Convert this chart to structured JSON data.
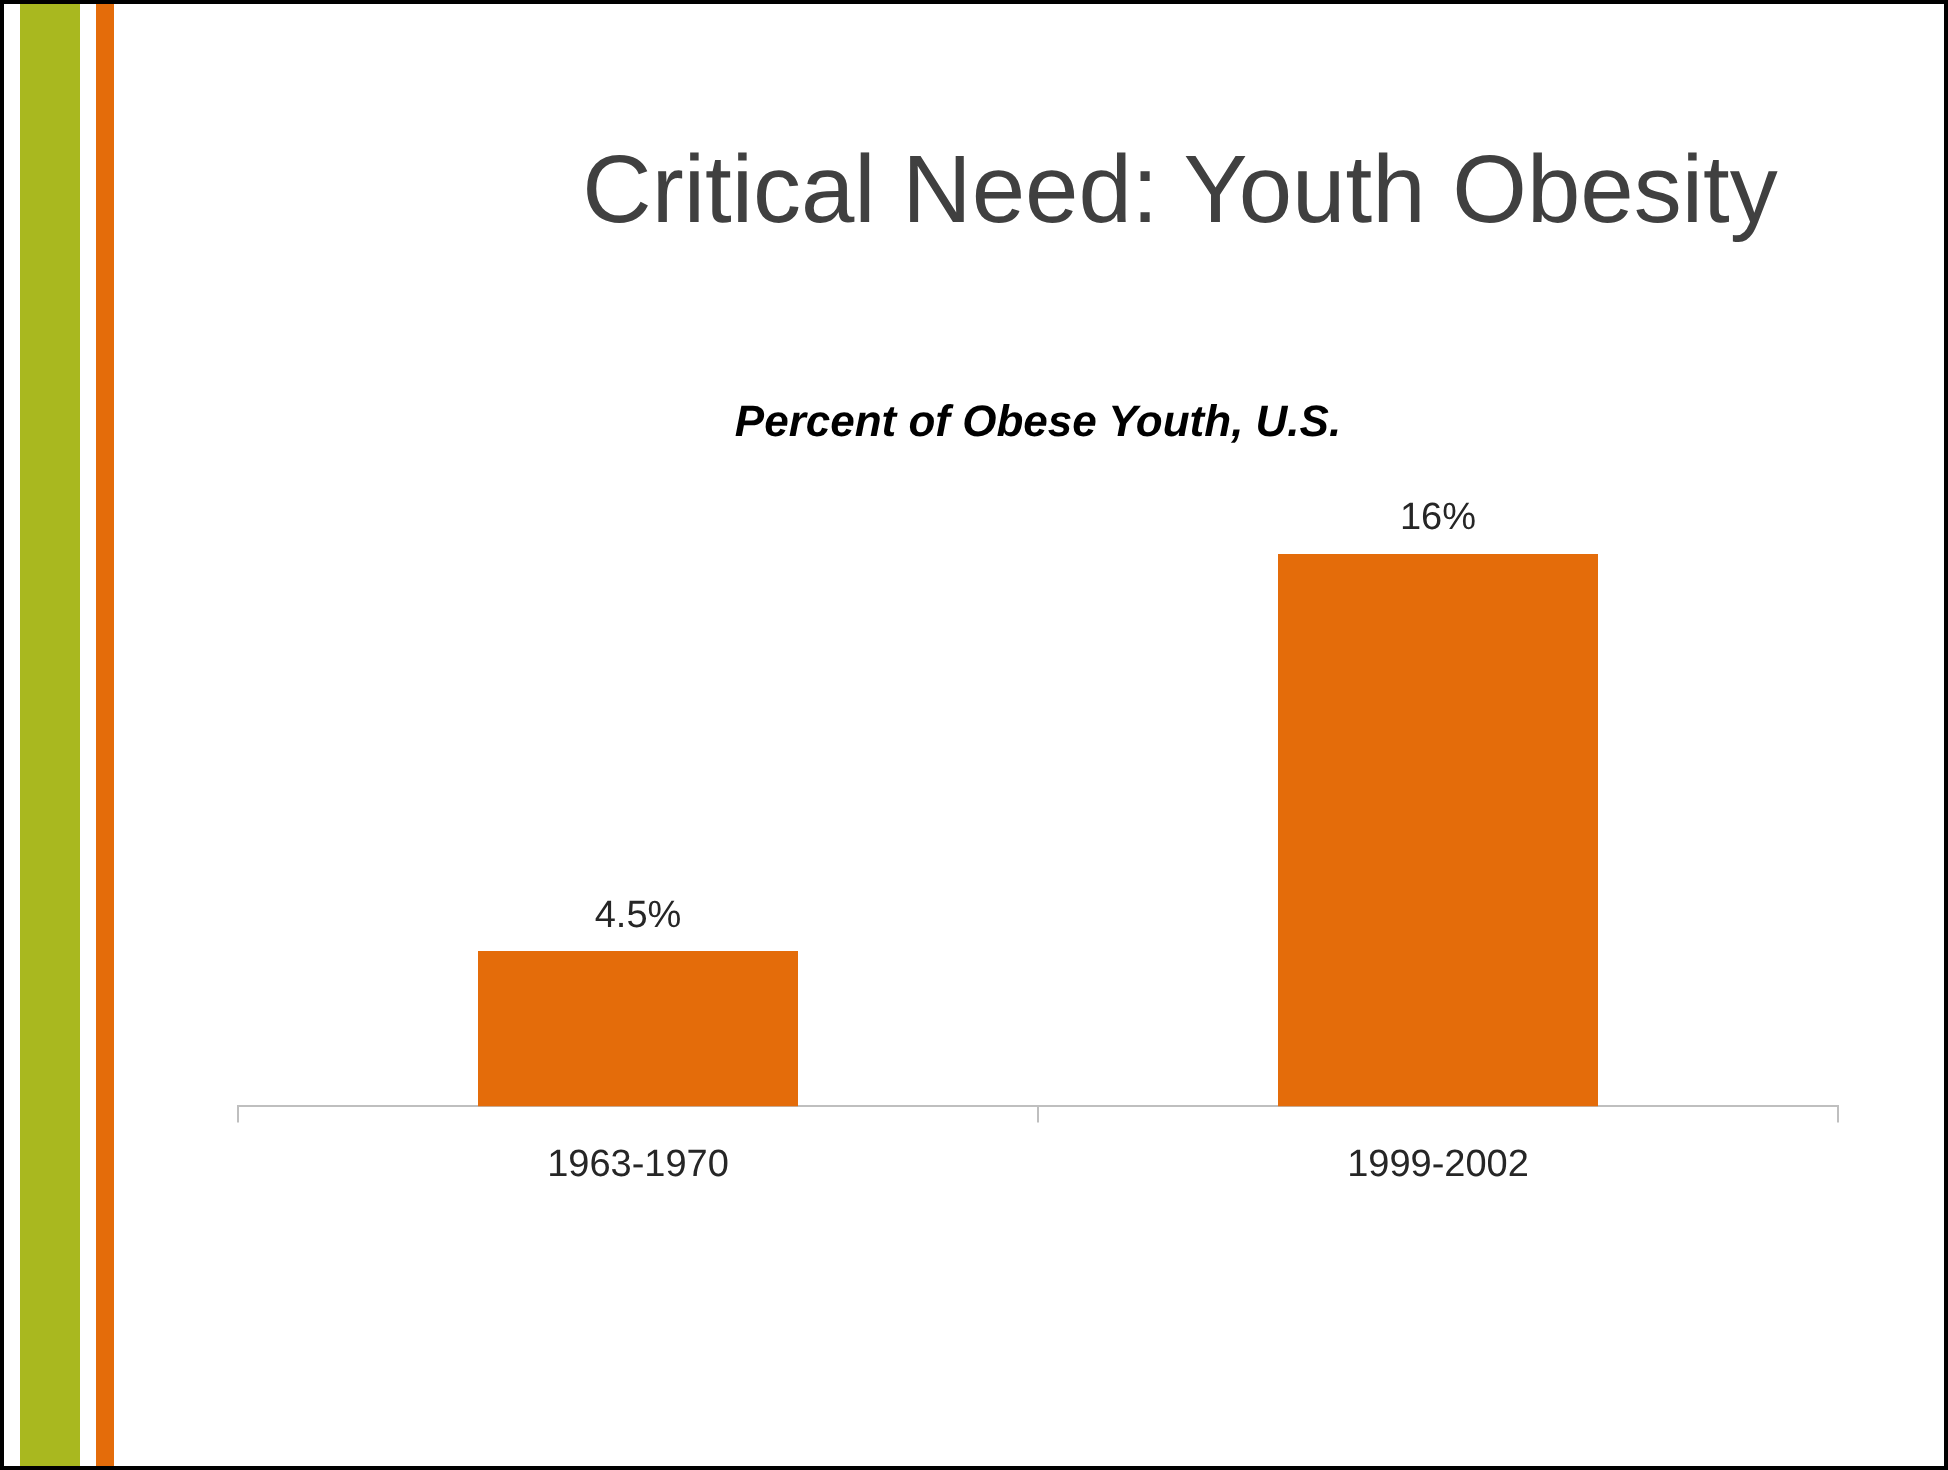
{
  "chart_data": {
    "type": "bar",
    "title": "Critical Need: Youth Obesity",
    "subtitle": "Percent of Obese Youth, U.S.",
    "categories": [
      "1963-1970",
      "1999-2002"
    ],
    "values": [
      4.5,
      16
    ],
    "value_labels": [
      "4.5%",
      "16%"
    ],
    "color": "#e46c0a"
  }
}
